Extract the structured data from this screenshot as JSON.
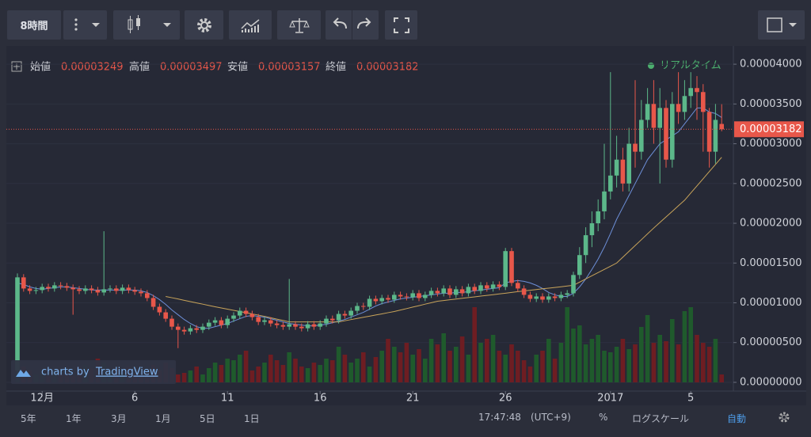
{
  "toolbar": {
    "interval": "8時間"
  },
  "footer": {
    "ranges": [
      "5年",
      "1年",
      "3月",
      "1月",
      "5日",
      "1日"
    ],
    "time": "17:47:48",
    "timezone": "(UTC+9)",
    "percent": "%",
    "log_scale": "ログスケール",
    "auto": "自動"
  },
  "chart_data": {
    "type": "candlestick",
    "ohlc_labels": [
      "始値",
      "高値",
      "安値",
      "終値"
    ],
    "status": "リアルタイム",
    "watermark": "charts by",
    "brand": "TradingView",
    "up_color": "#5cb88a",
    "down_color": "#e8574a",
    "volume_up_color": "#1f5a2c",
    "volume_down_color": "#6e1d22",
    "ylim": [
      -1.1e-06,
      4.23e-05
    ],
    "yticks": [
      {
        "value": 0,
        "label": "0.00000000"
      },
      {
        "value": 5e-06,
        "label": "0.00000500"
      },
      {
        "value": 1e-05,
        "label": "0.00001000"
      },
      {
        "value": 1.5e-05,
        "label": "0.00001500"
      },
      {
        "value": 2e-05,
        "label": "0.00002000"
      },
      {
        "value": 2.5e-05,
        "label": "0.00002500"
      },
      {
        "value": 3e-05,
        "label": "0.00003000"
      },
      {
        "value": 3.5e-05,
        "label": "0.00003500"
      },
      {
        "value": 4e-05,
        "label": "0.00004000"
      }
    ],
    "grid": true,
    "categories": [
      null,
      null,
      null,
      null,
      "12月",
      null,
      null,
      null,
      null,
      null,
      null,
      null,
      null,
      null,
      null,
      null,
      null,
      null,
      null,
      "6",
      null,
      null,
      null,
      null,
      null,
      null,
      null,
      null,
      null,
      null,
      null,
      null,
      null,
      null,
      "11",
      null,
      null,
      null,
      null,
      null,
      null,
      null,
      null,
      null,
      null,
      null,
      null,
      null,
      null,
      "16",
      null,
      null,
      null,
      null,
      null,
      null,
      null,
      null,
      null,
      null,
      null,
      null,
      null,
      null,
      "21",
      null,
      null,
      null,
      null,
      null,
      null,
      null,
      null,
      null,
      null,
      null,
      null,
      null,
      null,
      "26",
      null,
      null,
      null,
      null,
      null,
      null,
      null,
      null,
      null,
      null,
      null,
      null,
      null,
      null,
      null,
      null,
      "2017",
      null,
      null,
      null,
      null,
      null,
      null,
      null,
      null,
      null,
      null,
      null,
      null,
      "5",
      null,
      null,
      null,
      null,
      null
    ],
    "open": [
      1.5e-06,
      1.32e-05,
      1.18e-05,
      1.15e-05,
      1.16e-05,
      1.2e-05,
      1.18e-05,
      1.22e-05,
      1.21e-05,
      1.19e-05,
      1.17e-05,
      1.15e-05,
      1.18e-05,
      1.16e-05,
      1.13e-05,
      1.17e-05,
      1.18e-05,
      1.15e-05,
      1.19e-05,
      1.16e-05,
      1.14e-05,
      1.12e-05,
      1.06e-05,
      9.5e-06,
      8.8e-06,
      8e-06,
      7e-06,
      6.6e-06,
      6.4e-06,
      6.8e-06,
      6.6e-06,
      7e-06,
      7.5e-06,
      7.8e-06,
      7.2e-06,
      8e-06,
      8.4e-06,
      9e-06,
      8.6e-06,
      8.2e-06,
      7.6e-06,
      7.8e-06,
      7.4e-06,
      7.2e-06,
      7e-06,
      7.3e-06,
      7e-06,
      6.8e-06,
      7.3e-06,
      7e-06,
      7.4e-06,
      8e-06,
      7.8e-06,
      8.6e-06,
      8.4e-06,
      9e-06,
      9.6e-06,
      9.5e-06,
      1.05e-05,
      1.02e-05,
      1.06e-05,
      1.04e-05,
      1.1e-05,
      1.08e-05,
      1.07e-05,
      1.12e-05,
      1.06e-05,
      1.1e-05,
      1.15e-05,
      1.12e-05,
      1.18e-05,
      1.1e-05,
      1.17e-05,
      1.12e-05,
      1.2e-05,
      1.15e-05,
      1.22e-05,
      1.18e-05,
      1.23e-05,
      1.2e-05,
      1.65e-05,
      1.25e-05,
      1.18e-05,
      1.1e-05,
      1.05e-05,
      1.08e-05,
      1.04e-05,
      1.08e-05,
      1.06e-05,
      1.1e-05,
      1.12e-05,
      1.35e-05,
      1.6e-05,
      1.85e-05,
      2e-05,
      2.15e-05,
      2.4e-05,
      2.6e-05,
      2.8e-05,
      2.5e-05,
      3e-05,
      2.9e-05,
      3.3e-05,
      3.5e-05,
      3.2e-05,
      3.45e-05,
      2.8e-05,
      3.5e-05,
      3.4e-05,
      3.6e-05,
      3.7e-05,
      3.65e-05,
      3.4e-05,
      2.9e-05,
      3.249e-05
    ],
    "high": [
      1.37e-05,
      1.36e-05,
      1.22e-05,
      1.2e-05,
      1.24e-05,
      1.24e-05,
      1.26e-05,
      1.26e-05,
      1.25e-05,
      1.23e-05,
      1.21e-05,
      1.22e-05,
      1.22e-05,
      1.2e-05,
      1.9e-05,
      1.22e-05,
      1.22e-05,
      1.23e-05,
      1.23e-05,
      1.2e-05,
      1.18e-05,
      1.16e-05,
      1.1e-05,
      9.9e-06,
      9.2e-06,
      8.4e-06,
      7.4e-06,
      7e-06,
      7.2e-06,
      7.2e-06,
      7.4e-06,
      7.9e-06,
      8.2e-06,
      8.2e-06,
      8.4e-06,
      8.8e-06,
      9.4e-06,
      9.4e-06,
      9e-06,
      8.6e-06,
      8.2e-06,
      8.2e-06,
      7.8e-06,
      7.6e-06,
      1.3e-05,
      7.7e-06,
      7.4e-06,
      7.7e-06,
      7.7e-06,
      7.8e-06,
      8.4e-06,
      8.4e-06,
      9e-06,
      9e-06,
      9.4e-06,
      1e-05,
      1e-05,
      1.09e-05,
      1.09e-05,
      1.1e-05,
      1.1e-05,
      1.14e-05,
      1.14e-05,
      1.12e-05,
      1.16e-05,
      1.16e-05,
      1.14e-05,
      1.19e-05,
      1.19e-05,
      1.22e-05,
      1.22e-05,
      1.21e-05,
      1.21e-05,
      1.24e-05,
      1.24e-05,
      1.26e-05,
      1.26e-05,
      1.27e-05,
      1.27e-05,
      1.69e-05,
      1.69e-05,
      1.29e-05,
      1.22e-05,
      1.14e-05,
      1.12e-05,
      1.12e-05,
      1.12e-05,
      1.12e-05,
      1.14e-05,
      1.16e-05,
      1.39e-05,
      1.7e-05,
      1.95e-05,
      2.15e-05,
      2.3e-05,
      3e-05,
      3.9e-05,
      3.1e-05,
      2.95e-05,
      3.2e-05,
      3.8e-05,
      3.55e-05,
      3.7e-05,
      3.8e-05,
      3.7e-05,
      3.55e-05,
      3.65e-05,
      3.9e-05,
      3.8e-05,
      3.9e-05,
      3.85e-05,
      3.75e-05,
      3.45e-05,
      3.5e-05,
      3.497e-05
    ],
    "low": [
      1e-06,
      1.14e-05,
      1.11e-05,
      1.11e-05,
      1.12e-05,
      1.14e-05,
      1.14e-05,
      1.17e-05,
      1.15e-05,
      8.5e-06,
      1.11e-05,
      1.11e-05,
      1.12e-05,
      1.09e-05,
      1.09e-05,
      1.13e-05,
      1.11e-05,
      1.11e-05,
      1.12e-05,
      1.1e-05,
      1.08e-05,
      1.02e-05,
      9.1e-06,
      8.4e-06,
      7.6e-06,
      6.6e-06,
      4.3e-06,
      6e-06,
      6e-06,
      6.2e-06,
      6.2e-06,
      6.6e-06,
      7.1e-06,
      6.8e-06,
      6.8e-06,
      7.6e-06,
      8e-06,
      8.2e-06,
      7.8e-06,
      7.2e-06,
      7.2e-06,
      7e-06,
      6.8e-06,
      6.6e-06,
      6.6e-06,
      6.6e-06,
      6.4e-06,
      6.4e-06,
      6.6e-06,
      6.6e-06,
      7e-06,
      7.4e-06,
      7.4e-06,
      8e-06,
      8e-06,
      8.6e-06,
      9.1e-06,
      9.1e-06,
      9.8e-06,
      9.8e-06,
      1e-05,
      1e-05,
      1.04e-05,
      1.03e-05,
      1.03e-05,
      1.02e-05,
      1.02e-05,
      1.06e-05,
      1.08e-05,
      1.08e-05,
      1.06e-05,
      1.06e-05,
      1.08e-05,
      1.08e-05,
      1.11e-05,
      1.11e-05,
      1.14e-05,
      1.14e-05,
      1.16e-05,
      1.16e-05,
      1.21e-05,
      1.14e-05,
      1.06e-05,
      1.01e-05,
      1.01e-05,
      1e-05,
      1e-05,
      1.02e-05,
      1.02e-05,
      1.06e-05,
      1.08e-05,
      1.3e-05,
      1.5e-05,
      1.7e-05,
      1.9e-05,
      2.05e-05,
      2.3e-05,
      2.45e-05,
      2.4e-05,
      2.4e-05,
      2.7e-05,
      2.8e-05,
      3.2e-05,
      3e-05,
      2.5e-05,
      2.7e-05,
      2.7e-05,
      3.25e-05,
      3.3e-05,
      3.45e-05,
      3.3e-05,
      2.9e-05,
      2.7e-05,
      2.75e-05,
      3.157e-05
    ],
    "close": [
      1.32e-05,
      1.18e-05,
      1.15e-05,
      1.16e-05,
      1.2e-05,
      1.18e-05,
      1.22e-05,
      1.21e-05,
      1.19e-05,
      1.17e-05,
      1.15e-05,
      1.18e-05,
      1.16e-05,
      1.13e-05,
      1.17e-05,
      1.18e-05,
      1.15e-05,
      1.19e-05,
      1.16e-05,
      1.14e-05,
      1.12e-05,
      1.06e-05,
      9.5e-06,
      8.8e-06,
      8e-06,
      7e-06,
      6.6e-06,
      6.4e-06,
      6.8e-06,
      6.6e-06,
      7e-06,
      7.5e-06,
      7.8e-06,
      7.2e-06,
      8e-06,
      8.4e-06,
      9e-06,
      8.6e-06,
      8.2e-06,
      7.6e-06,
      7.8e-06,
      7.4e-06,
      7.2e-06,
      7e-06,
      7.3e-06,
      7e-06,
      6.8e-06,
      7.3e-06,
      7e-06,
      7.4e-06,
      8e-06,
      7.8e-06,
      8.6e-06,
      8.4e-06,
      9e-06,
      9.6e-06,
      9.5e-06,
      1.05e-05,
      1.02e-05,
      1.06e-05,
      1.04e-05,
      1.1e-05,
      1.08e-05,
      1.07e-05,
      1.12e-05,
      1.06e-05,
      1.1e-05,
      1.15e-05,
      1.12e-05,
      1.18e-05,
      1.1e-05,
      1.17e-05,
      1.12e-05,
      1.2e-05,
      1.15e-05,
      1.22e-05,
      1.18e-05,
      1.23e-05,
      1.2e-05,
      1.65e-05,
      1.25e-05,
      1.18e-05,
      1.1e-05,
      1.05e-05,
      1.08e-05,
      1.04e-05,
      1.08e-05,
      1.06e-05,
      1.1e-05,
      1.12e-05,
      1.35e-05,
      1.6e-05,
      1.85e-05,
      2e-05,
      2.15e-05,
      2.4e-05,
      2.6e-05,
      2.8e-05,
      2.5e-05,
      3e-05,
      2.9e-05,
      3.3e-05,
      3.5e-05,
      3.2e-05,
      3.45e-05,
      2.8e-05,
      3.5e-05,
      3.4e-05,
      3.6e-05,
      3.7e-05,
      3.65e-05,
      3.4e-05,
      2.9e-05,
      3.3e-05,
      3.182e-05
    ],
    "volume": [
      95,
      20,
      15,
      10,
      12,
      8,
      15,
      10,
      12,
      8,
      20,
      22,
      18,
      30,
      25,
      15,
      18,
      12,
      20,
      10,
      8,
      12,
      22,
      15,
      25,
      18,
      10,
      12,
      15,
      20,
      10,
      18,
      25,
      22,
      30,
      28,
      35,
      40,
      15,
      20,
      25,
      35,
      28,
      22,
      38,
      30,
      20,
      18,
      25,
      22,
      30,
      28,
      45,
      35,
      25,
      30,
      38,
      20,
      32,
      40,
      55,
      45,
      38,
      50,
      35,
      42,
      30,
      55,
      48,
      62,
      40,
      45,
      58,
      35,
      95,
      50,
      55,
      60,
      40,
      35,
      48,
      40,
      28,
      20,
      35,
      40,
      55,
      30,
      50,
      95,
      68,
      72,
      48,
      55,
      60,
      40,
      38,
      45,
      55,
      42,
      48,
      70,
      85,
      50,
      60,
      52,
      80,
      48,
      90,
      95,
      60,
      50,
      45,
      55,
      10
    ],
    "series": [
      {
        "color": "#6d8fd8",
        "values": [
          1.25e-05,
          1.23e-05,
          1.2e-05,
          1.18e-05,
          1.17e-05,
          1.18e-05,
          1.19e-05,
          1.2e-05,
          1.2e-05,
          1.19e-05,
          1.18e-05,
          1.17e-05,
          1.16e-05,
          1.16e-05,
          1.16e-05,
          1.16e-05,
          1.16e-05,
          1.16e-05,
          1.16e-05,
          1.16e-05,
          1.15e-05,
          1.13e-05,
          1.09e-05,
          1.04e-05,
          9.8e-06,
          9.1e-06,
          8.5e-06,
          7.9e-06,
          7.4e-06,
          7e-06,
          6.8e-06,
          6.8e-06,
          7e-06,
          7.2e-06,
          7.4e-06,
          7.7e-06,
          8e-06,
          8.3e-06,
          8.4e-06,
          8.3e-06,
          8.2e-06,
          8e-06,
          7.8e-06,
          7.6e-06,
          7.4e-06,
          7.3e-06,
          7.2e-06,
          7.1e-06,
          7.1e-06,
          7.2e-06,
          7.3e-06,
          7.5e-06,
          7.7e-06,
          7.9e-06,
          8.2e-06,
          8.5e-06,
          8.8e-06,
          9.2e-06,
          9.6e-06,
          9.9e-06,
          1.01e-05,
          1.03e-05,
          1.05e-05,
          1.06e-05,
          1.07e-05,
          1.08e-05,
          1.09e-05,
          1.1e-05,
          1.11e-05,
          1.12e-05,
          1.12e-05,
          1.13e-05,
          1.13e-05,
          1.14e-05,
          1.15e-05,
          1.16e-05,
          1.17e-05,
          1.18e-05,
          1.19e-05,
          1.25e-05,
          1.27e-05,
          1.28e-05,
          1.27e-05,
          1.25e-05,
          1.22e-05,
          1.18e-05,
          1.13e-05,
          1.1e-05,
          1.08e-05,
          1.08e-05,
          1.12e-05,
          1.2e-05,
          1.3e-05,
          1.42e-05,
          1.55e-05,
          1.7e-05,
          1.87e-05,
          2.05e-05,
          2.2e-05,
          2.35e-05,
          2.5e-05,
          2.65e-05,
          2.8e-05,
          2.9e-05,
          3e-05,
          3.05e-05,
          3.1e-05,
          3.15e-05,
          3.25e-05,
          3.35e-05,
          3.45e-05,
          3.45e-05,
          3.4e-05,
          3.38e-05,
          3.33e-05
        ]
      },
      {
        "color": "#c9a45a",
        "values": [
          null,
          null,
          null,
          null,
          null,
          null,
          null,
          null,
          null,
          null,
          null,
          null,
          null,
          null,
          null,
          null,
          null,
          null,
          null,
          null,
          null,
          null,
          null,
          null,
          1.08e-05,
          1.064e-05,
          1.048e-05,
          1.031e-05,
          1.015e-05,
          9.99e-06,
          9.83e-06,
          9.66e-06,
          9.5e-06,
          9.35e-06,
          9.2e-06,
          9.05e-06,
          8.9e-06,
          8.75e-06,
          8.6e-06,
          8.45e-06,
          8.3e-06,
          8.12e-06,
          7.95e-06,
          7.78e-06,
          7.6e-06,
          7.6e-06,
          7.6e-06,
          7.6e-06,
          7.6e-06,
          7.6e-06,
          7.6e-06,
          7.6e-06,
          7.6e-06,
          7.74e-06,
          7.89e-06,
          8.03e-06,
          8.18e-06,
          8.32e-06,
          8.47e-06,
          8.61e-06,
          8.76e-06,
          8.9e-06,
          9.09e-06,
          9.27e-06,
          9.46e-06,
          9.64e-06,
          9.83e-06,
          1.001e-05,
          1.02e-05,
          1.029e-05,
          1.038e-05,
          1.047e-05,
          1.057e-05,
          1.066e-05,
          1.075e-05,
          1.084e-05,
          1.093e-05,
          1.102e-05,
          1.112e-05,
          1.121e-05,
          1.13e-05,
          1.14e-05,
          1.149e-05,
          1.158e-05,
          1.167e-05,
          1.176e-05,
          1.184e-05,
          1.193e-05,
          1.202e-05,
          1.211e-05,
          1.22e-05,
          1.26e-05,
          1.3e-05,
          1.34e-05,
          1.38e-05,
          1.42e-05,
          1.46e-05,
          1.5e-05,
          1.573e-05,
          1.647e-05,
          1.72e-05,
          1.793e-05,
          1.867e-05,
          1.94e-05,
          2.01e-05,
          2.08e-05,
          2.15e-05,
          2.22e-05,
          2.29e-05,
          2.38e-05,
          2.47e-05,
          2.56e-05,
          2.65e-05,
          2.74e-05,
          2.83e-05
        ]
      }
    ]
  }
}
